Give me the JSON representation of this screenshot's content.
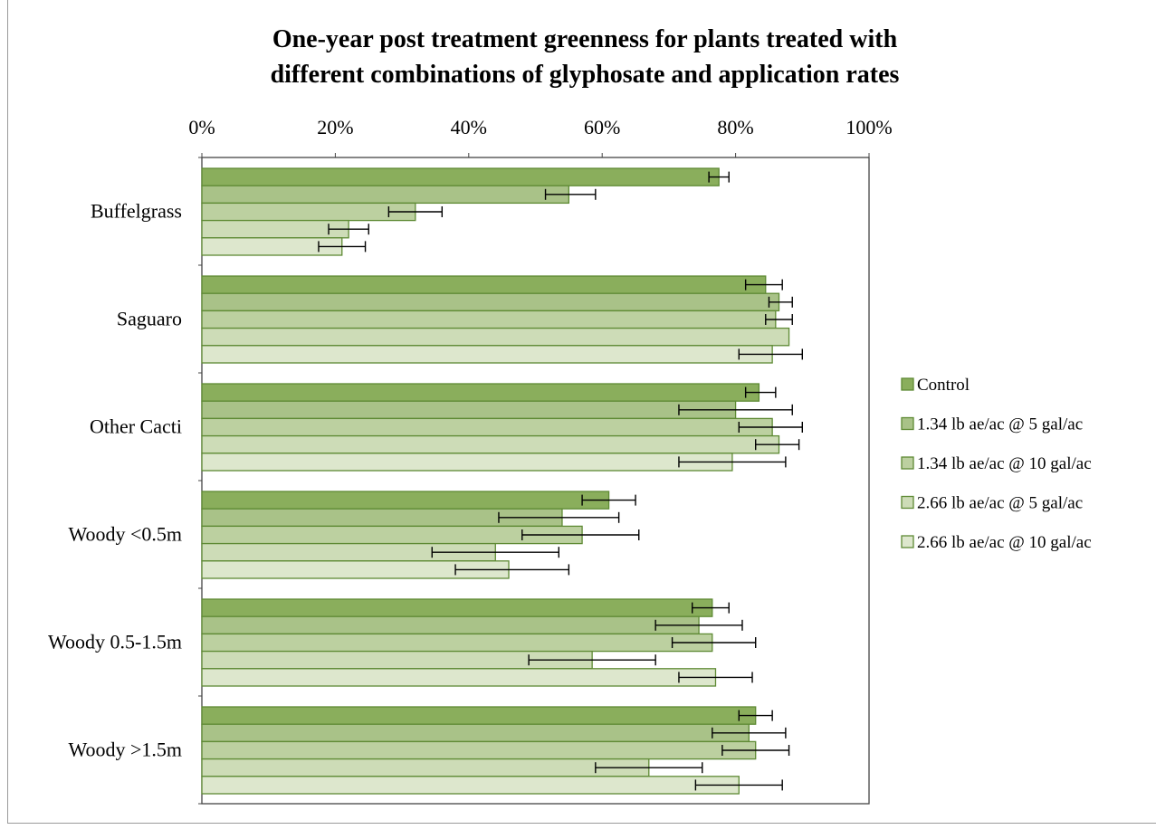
{
  "chart_data": {
    "type": "bar",
    "orientation": "horizontal",
    "title_lines": [
      "One-year post treatment greenness for plants treated with",
      "different combinations of glyphosate and application rates"
    ],
    "xlim": [
      0,
      100
    ],
    "x_ticks": [
      "0%",
      "20%",
      "40%",
      "60%",
      "80%",
      "100%"
    ],
    "categories": [
      "Buffelgrass",
      "Saguaro",
      "Other Cacti",
      "Woody <0.5m",
      "Woody 0.5-1.5m",
      "Woody >1.5m"
    ],
    "series": [
      {
        "name": "Control",
        "color": "#8aae5c",
        "values": [
          77.5,
          84.5,
          83.5,
          61,
          76.5,
          83
        ],
        "err_low": [
          76,
          81.5,
          81.5,
          57,
          73.5,
          80.5
        ],
        "err_high": [
          79,
          87,
          86,
          65,
          79,
          85.5
        ]
      },
      {
        "name": "1.34 lb ae/ac @ 5 gal/ac",
        "color": "#a9c288",
        "values": [
          55,
          86.5,
          80,
          54,
          74.5,
          82
        ],
        "err_low": [
          51.5,
          85,
          71.5,
          44.5,
          68,
          76.5
        ],
        "err_high": [
          59,
          88.5,
          88.5,
          62.5,
          81,
          87.5
        ]
      },
      {
        "name": "1.34 lb ae/ac @ 10 gal/ac",
        "color": "#bcd0a0",
        "values": [
          32,
          86,
          85.5,
          57,
          76.5,
          83
        ],
        "err_low": [
          28,
          84.5,
          80.5,
          48,
          70.5,
          78
        ],
        "err_high": [
          36,
          88.5,
          90,
          65.5,
          83,
          88
        ]
      },
      {
        "name": "2.66 lb ae/ac @ 5 gal/ac",
        "color": "#cddcb7",
        "values": [
          22,
          88,
          86.5,
          44,
          58.5,
          67
        ],
        "err_low": [
          19,
          88,
          83,
          34.5,
          49,
          59
        ],
        "err_high": [
          25,
          88,
          89.5,
          53.5,
          68,
          75
        ]
      },
      {
        "name": "2.66 lb ae/ac @ 10 gal/ac",
        "color": "#dde7cd",
        "values": [
          21,
          85.5,
          79.5,
          46,
          77,
          80.5
        ],
        "err_low": [
          17.5,
          80.5,
          71.5,
          38,
          71.5,
          74
        ],
        "err_high": [
          24.5,
          90,
          87.5,
          55,
          82.5,
          87
        ]
      }
    ],
    "legend_position": "right",
    "grid": false
  }
}
